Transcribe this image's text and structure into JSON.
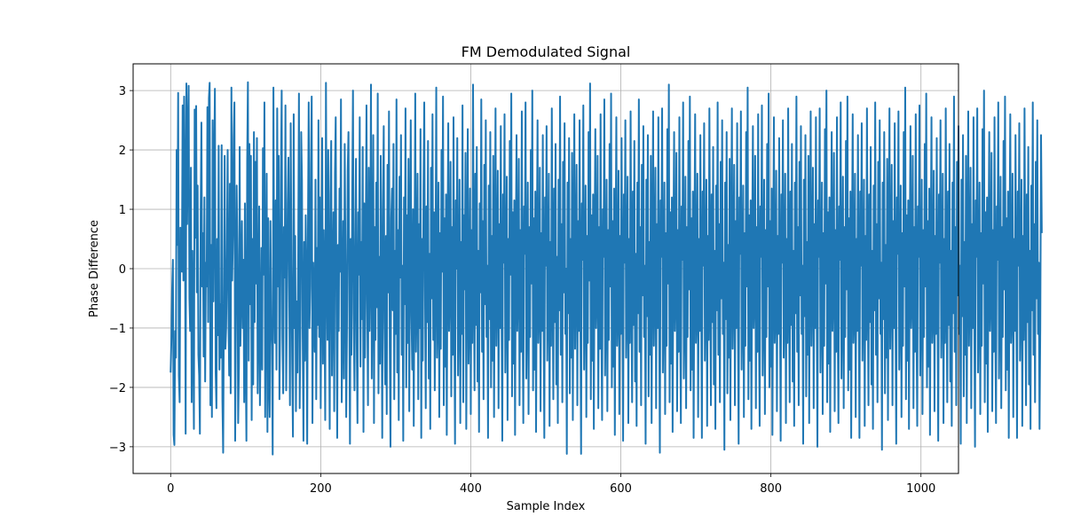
{
  "chart_data": {
    "type": "line",
    "title": "FM Demodulated Signal",
    "xlabel": "Sample Index",
    "ylabel": "Phase Difference",
    "xlim": [
      -50,
      1050
    ],
    "ylim": [
      -3.45,
      3.45
    ],
    "xticks": [
      0,
      200,
      400,
      600,
      800,
      1000
    ],
    "yticks": [
      -3,
      -2,
      -1,
      0,
      1,
      2,
      3
    ],
    "xtick_labels": [
      "0",
      "200",
      "400",
      "600",
      "800",
      "1000"
    ],
    "ytick_labels": [
      "−3",
      "−2",
      "−1",
      "0",
      "1",
      "2",
      "3"
    ],
    "grid": true,
    "legend": "none",
    "series": [
      {
        "color": "#1f77b4",
        "x_start": 0,
        "x_step": 1,
        "values": [
          -1.75,
          -1.2,
          -0.35,
          0.15,
          -2.8,
          -2.97,
          -1.05,
          -1.5,
          2.0,
          0.4,
          2.96,
          -1.8,
          -2.25,
          0.69,
          0.2,
          -0.05,
          2.75,
          -0.2,
          2.9,
          1.3,
          -2.78,
          3.12,
          0.75,
          2.29,
          3.08,
          -0.5,
          -1.05,
          1.7,
          -2.25,
          0.3,
          -1.1,
          -2.7,
          2.68,
          0.52,
          2.74,
          -0.4,
          1.4,
          -1.45,
          -1.8,
          -2.78,
          0.9,
          2.46,
          -0.3,
          0.6,
          -1.48,
          1.2,
          -1.9,
          0.1,
          -0.3,
          2.72,
          -0.9,
          2.87,
          3.13,
          -2.3,
          0.4,
          -2.5,
          2.5,
          -0.55,
          1.63,
          3.03,
          -1.75,
          -2.35,
          0.5,
          -1.12,
          2.07,
          -1.7,
          -0.6,
          -1.5,
          2.08,
          -2.22,
          -3.1,
          -0.55,
          1.9,
          -1.35,
          -0.98,
          0.25,
          2.0,
          -0.65,
          -1.8,
          1.43,
          -2.1,
          3.05,
          -0.2,
          0.54,
          2.2,
          2.8,
          -2.9,
          -0.7,
          1.4,
          0.2,
          -2.6,
          -1.65,
          2.05,
          -1.3,
          -0.35,
          0.8,
          -1.0,
          0.15,
          -2.25,
          1.1,
          -1.5,
          -2.9,
          1.8,
          3.14,
          -1.55,
          2.1,
          -0.6,
          1.9,
          -2.55,
          0.5,
          -1.95,
          2.3,
          -0.9,
          1.8,
          -0.25,
          2.2,
          -2.1,
          -0.8,
          1.05,
          -2.3,
          -1.1,
          0.35,
          -1.7,
          2.03,
          -0.1,
          2.8,
          -2.5,
          -0.4,
          1.6,
          -2.75,
          0.85,
          -1.85,
          -2.5,
          0.8,
          -0.85,
          -1.3,
          -3.13,
          3.05,
          -0.3,
          -1.25,
          1.15,
          -1.7,
          2.7,
          -0.3,
          1.9,
          -2.2,
          -0.85,
          1.55,
          3.0,
          -1.15,
          -2.1,
          0.7,
          -0.15,
          2.75,
          -2.05,
          -0.65,
          1.1,
          1.87,
          -0.25,
          -2.3,
          2.45,
          0.05,
          -1.6,
          -2.83,
          2.6,
          -1.0,
          0.55,
          -2.4,
          -0.55,
          -1.75,
          0.2,
          2.95,
          -2.35,
          -0.9,
          2.3,
          1.5,
          -1.15,
          -2.9,
          0.45,
          -1.55,
          0.9,
          -0.2,
          -2.95,
          0.6,
          2.8,
          -1.0,
          -0.3,
          1.75,
          2.9,
          -2.6,
          0.1,
          -0.75,
          -1.4,
          1.5,
          -2.2,
          0.35,
          -0.95,
          2.5,
          -1.15,
          1.2,
          -2.35,
          -0.25,
          2.2,
          -1.6,
          0.65,
          -0.55,
          -2.55,
          3.13,
          0.05,
          -1.2,
          2.0,
          -0.6,
          -2.7,
          1.25,
          2.15,
          -1.8,
          -0.35,
          0.95,
          -2.4,
          1.6,
          2.55,
          -0.7,
          -2.85,
          0.4,
          -1.05,
          1.35,
          -0.05,
          2.85,
          -2.25,
          -0.95,
          0.8,
          -1.85,
          2.1,
          0.15,
          -2.5,
          -1.0,
          1.65,
          2.3,
          -0.45,
          -2.95,
          0.5,
          -1.45,
          1.15,
          3.0,
          -0.75,
          -2.05,
          0.25,
          1.85,
          -1.25,
          -2.6,
          0.95,
          -0.1,
          2.55,
          -1.65,
          0.45,
          -0.85,
          2.05,
          -2.75,
          1.1,
          -1.5,
          0.35,
          2.75,
          -0.55,
          -2.3,
          1.7,
          -1.05,
          0.0,
          3.1,
          -1.85,
          -0.35,
          2.25,
          -2.6,
          0.7,
          -1.2,
          1.45,
          -0.65,
          2.95,
          -2.1,
          0.2,
          -1.6,
          1.9,
          -0.2,
          -2.85,
          1.0,
          2.4,
          -0.9,
          -1.95,
          0.55,
          -2.45,
          1.75,
          -0.4,
          2.65,
          -1.3,
          -3.0,
          0.85,
          1.35,
          -0.7,
          2.1,
          -2.2,
          0.3,
          -1.1,
          2.85,
          -1.75,
          0.65,
          -2.55,
          1.55,
          -0.15,
          2.25,
          -1.45,
          0.05,
          -2.9,
          1.2,
          -0.6,
          2.7,
          -2.0,
          0.9,
          -1.25,
          1.85,
          -2.4,
          0.4,
          2.5,
          -0.8,
          -1.7,
          1.0,
          -2.65,
          0.15,
          2.95,
          -1.4,
          -0.45,
          1.6,
          -2.2,
          0.75,
          -1.0,
          2.35,
          -2.85,
          0.5,
          -1.55,
          1.3,
          2.8,
          -0.3,
          -2.35,
          1.05,
          -0.9,
          2.15,
          -1.85,
          0.25,
          -2.7,
          1.7,
          -0.5,
          2.6,
          -1.2,
          0.95,
          -2.05,
          0.1,
          3.05,
          -1.5,
          -0.7,
          1.45,
          -2.5,
          0.6,
          -1.35,
          2.0,
          -0.05,
          2.9,
          -2.3,
          0.85,
          -1.65,
          1.25,
          -2.8,
          0.35,
          2.45,
          -1.05,
          -0.25,
          1.8,
          -2.15,
          0.7,
          -1.45,
          2.55,
          -0.75,
          -2.95,
          1.15,
          0.0,
          2.2,
          -1.8,
          -0.55,
          1.5,
          -2.6,
          0.45,
          -1.1,
          2.75,
          -2.25,
          0.9,
          -0.35,
          1.95,
          -2.7,
          0.2,
          2.35,
          -1.6,
          -0.8,
          1.35,
          -2.45,
          0.65,
          -1.25,
          3.1,
          -0.15,
          -2.05,
          1.6,
          -0.95,
          2.05,
          -1.9,
          0.3,
          -2.75,
          1.1,
          -0.4,
          2.85,
          -1.4,
          0.8,
          -2.2,
          1.75,
          -0.6,
          2.5,
          -1.15,
          0.05,
          -2.85,
          1.4,
          -0.85,
          2.3,
          -2.0,
          0.55,
          -1.55,
          1.9,
          -2.5,
          0.15,
          2.7,
          -1.3,
          -0.2,
          1.65,
          -2.35,
          0.75,
          -1.0,
          2.4,
          -0.7,
          -2.9,
          1.25,
          0.1,
          2.6,
          -1.75,
          -0.45,
          1.55,
          -2.55,
          0.5,
          -1.2,
          2.15,
          -0.1,
          2.95,
          -2.15,
          0.95,
          -1.6,
          1.15,
          -2.8,
          0.4,
          2.25,
          -1.05,
          -0.3,
          1.85,
          -2.3,
          0.65,
          -1.4,
          2.65,
          -0.8,
          -2.6,
          1.05,
          0.25,
          2.8,
          -1.85,
          -0.55,
          1.45,
          -2.45,
          0.7,
          -1.15,
          2.0,
          -0.25,
          3.0,
          -2.05,
          0.85,
          -1.7,
          1.3,
          -2.75,
          0.3,
          2.5,
          -1.25,
          -0.65,
          1.7,
          -2.4,
          0.6,
          -1.05,
          2.25,
          -0.5,
          -2.85,
          1.2,
          0.05,
          2.4,
          -1.55,
          -0.35,
          1.6,
          -2.65,
          0.45,
          -1.3,
          2.7,
          -0.15,
          -2.2,
          1.35,
          -0.9,
          2.1,
          -1.95,
          0.2,
          -2.6,
          1.5,
          -0.7,
          2.9,
          -1.45,
          0.75,
          -2.25,
          1.8,
          -0.4,
          2.45,
          -1.1,
          0.0,
          -3.12,
          1.45,
          -0.75,
          2.2,
          -2.1,
          0.5,
          -1.5,
          1.95,
          -2.55,
          0.35,
          2.6,
          -1.35,
          -0.1,
          1.75,
          -2.3,
          0.8,
          -1.05,
          2.5,
          -0.6,
          -3.12,
          1.1,
          0.15,
          2.75,
          -1.7,
          -0.5,
          1.4,
          -2.5,
          0.55,
          -1.25,
          2.3,
          -0.2,
          3.12,
          -2.2,
          0.9,
          -1.55,
          1.25,
          -2.7,
          0.45,
          2.35,
          -1.0,
          -0.35,
          1.9,
          -2.35,
          0.7,
          -1.35,
          2.6,
          -0.85,
          -2.55,
          1.0,
          0.2,
          2.85,
          -1.8,
          -0.6,
          1.5,
          -2.4,
          0.65,
          -1.2,
          2.1,
          -0.3,
          2.95,
          -2.0,
          0.8,
          -1.65,
          1.35,
          -2.8,
          0.25,
          2.55,
          -1.3,
          -0.7,
          1.65,
          -2.45,
          0.55,
          -1.1,
          2.2,
          -0.45,
          -2.9,
          1.25,
          0.1,
          2.5,
          -1.5,
          -0.4,
          1.55,
          -2.6,
          0.5,
          -1.25,
          2.65,
          -0.2,
          -2.25,
          1.3,
          -0.95,
          2.15,
          -1.9,
          0.25,
          -2.65,
          1.45,
          -0.75,
          2.85,
          -1.4,
          0.7,
          -2.3,
          1.75,
          -0.45,
          2.4,
          -1.15,
          0.05,
          -2.95,
          1.5,
          -0.8,
          2.25,
          -2.15,
          0.45,
          -1.45,
          1.9,
          -2.6,
          0.3,
          2.65,
          -1.3,
          -0.15,
          1.7,
          -2.35,
          0.75,
          -1.0,
          2.55,
          -0.65,
          -3.1,
          1.15,
          0.2,
          2.7,
          -1.75,
          -0.55,
          1.45,
          -2.45,
          0.6,
          -1.3,
          2.35,
          -0.25,
          3.1,
          -2.25,
          0.95,
          -1.6,
          1.2,
          -2.75,
          0.4,
          2.3,
          -1.05,
          -0.3,
          1.95,
          -2.4,
          0.65,
          -1.4,
          2.55,
          -0.8,
          -2.6,
          1.05,
          0.15,
          2.8,
          -1.85,
          -0.65,
          1.55,
          -2.35,
          0.7,
          -1.15,
          2.15,
          -0.35,
          2.9,
          -2.05,
          0.85,
          -1.7,
          1.3,
          -2.85,
          0.3,
          2.6,
          -1.25,
          -0.75,
          1.6,
          -2.5,
          0.5,
          -1.05,
          2.25,
          -0.4,
          -2.85,
          1.3,
          0.05,
          2.45,
          -1.55,
          -0.45,
          1.5,
          -2.65,
          0.55,
          -1.2,
          2.7,
          -0.15,
          -2.3,
          1.25,
          -0.9,
          2.05,
          -1.95,
          0.3,
          -2.7,
          1.4,
          -0.7,
          2.8,
          -1.45,
          0.75,
          -2.25,
          1.8,
          -0.5,
          2.5,
          -1.1,
          0.1,
          -3.05,
          1.45,
          -0.85,
          2.3,
          -2.1,
          0.4,
          -1.5,
          1.85,
          -2.55,
          0.35,
          2.7,
          -1.35,
          -0.2,
          1.75,
          -2.3,
          0.8,
          -1.0,
          2.45,
          -0.7,
          -2.95,
          1.2,
          0.25,
          2.65,
          -1.7,
          -0.6,
          1.4,
          -2.5,
          0.6,
          -1.3,
          2.3,
          -0.3,
          3.05,
          -2.2,
          0.9,
          -1.55,
          1.15,
          -2.7,
          0.45,
          2.4,
          -1.0,
          -0.4,
          1.9,
          -2.35,
          0.7,
          -1.4,
          2.6,
          -0.85,
          -2.65,
          1.05,
          0.2,
          2.75,
          -1.8,
          -0.55,
          1.5,
          -2.45,
          0.65,
          -1.15,
          2.1,
          -0.3,
          2.95,
          -2.0,
          0.8,
          -1.65,
          1.35,
          -2.8,
          0.3,
          2.55,
          -1.25,
          -0.7,
          1.65,
          -2.4,
          0.55,
          -1.1,
          2.2,
          -0.5,
          -2.9,
          1.25,
          0.1,
          2.5,
          -1.5,
          -0.4,
          1.6,
          -2.6,
          0.5,
          -1.25,
          2.7,
          -0.2,
          -2.25,
          1.3,
          -0.95,
          2.1,
          -1.9,
          0.3,
          -2.65,
          1.45,
          -0.75,
          2.9,
          -1.4,
          0.7,
          -2.3,
          1.8,
          -0.45,
          2.4,
          -1.1,
          0.05,
          -2.95,
          1.5,
          -0.8,
          2.25,
          -2.15,
          0.45,
          -1.45,
          1.9,
          -2.6,
          0.35,
          2.65,
          -1.3,
          -0.15,
          1.7,
          -2.35,
          0.75,
          -1.0,
          2.55,
          -0.65,
          -3.0,
          1.15,
          0.2,
          2.7,
          -1.75,
          -0.55,
          1.45,
          -2.45,
          0.6,
          -1.3,
          2.35,
          -0.25,
          3.0,
          -2.25,
          0.95,
          -1.6,
          1.2,
          -2.75,
          0.4,
          2.3,
          -1.05,
          -0.3,
          1.95,
          -2.4,
          0.65,
          -1.4,
          2.55,
          -0.8,
          -2.6,
          1.05,
          0.15,
          2.8,
          -1.85,
          -0.65,
          1.55,
          -2.35,
          0.7,
          -1.15,
          2.15,
          -0.35,
          2.9,
          -2.05,
          0.85,
          -1.7,
          1.3,
          -2.85,
          0.3,
          2.6,
          -1.25,
          -0.75,
          1.6,
          -2.5,
          0.5,
          -1.05,
          2.25,
          -0.4,
          -2.85,
          1.3,
          0.05,
          2.45,
          -1.55,
          -0.45,
          1.5,
          -2.65,
          0.55,
          -1.2,
          2.7,
          -0.15,
          -2.3,
          1.25,
          -0.9,
          2.05,
          -1.95,
          0.3,
          -2.7,
          1.4,
          -0.7,
          2.8,
          -1.45,
          0.75,
          -2.25,
          1.8,
          -0.5,
          2.5,
          -1.1,
          0.1,
          -3.05,
          1.45,
          -0.85,
          2.3,
          -2.1,
          0.4,
          -1.5,
          1.85,
          -2.55,
          0.35,
          2.7,
          -1.35,
          -0.2,
          1.75,
          -2.3,
          0.8,
          -1.0,
          2.45,
          -0.7,
          -2.95,
          1.2,
          0.25,
          2.65,
          -1.7,
          -0.6,
          1.4,
          -2.5,
          0.6,
          -1.3,
          2.3,
          -0.3,
          3.05,
          -2.2,
          0.9,
          -1.55,
          1.15,
          -2.7,
          0.45,
          2.4,
          -1.0,
          -0.4,
          1.9,
          -2.35,
          0.7,
          -1.4,
          2.6,
          -0.85,
          -2.65,
          1.05,
          0.2,
          2.75,
          -1.8,
          -0.55,
          1.5,
          -2.45,
          0.65,
          -1.15,
          2.1,
          -0.3,
          2.95,
          -2.0,
          0.8,
          -1.65,
          1.35,
          -2.8,
          0.3,
          2.55,
          -1.25,
          -0.7,
          1.65,
          -2.4,
          0.55,
          -1.1,
          2.2,
          -0.5,
          -2.9,
          1.25,
          0.1,
          2.5,
          -1.5,
          -0.4,
          1.6,
          -2.6,
          0.5,
          -1.25,
          2.7,
          -0.2,
          -2.25,
          1.3,
          -0.95,
          2.1,
          -1.9,
          0.3,
          -2.65,
          1.45,
          -0.75,
          2.9,
          -1.4,
          0.7,
          -2.3,
          1.8,
          -0.45,
          2.4,
          -1.1,
          0.05,
          -2.95,
          1.5,
          -0.8,
          2.25,
          -2.15,
          0.45,
          -1.45,
          1.9,
          -2.6,
          0.35,
          2.65,
          -1.3,
          -0.15,
          1.7,
          -2.35,
          0.75,
          -1.0,
          2.55,
          -0.65,
          -3.0,
          1.15,
          0.2,
          2.7,
          -1.75,
          -0.55,
          1.45,
          -2.45,
          0.6,
          -1.3,
          2.35,
          -0.25,
          3.0,
          -2.25,
          0.95,
          -1.6,
          1.2,
          -2.75,
          0.4,
          2.3,
          -1.05,
          -0.3,
          1.95,
          -2.4,
          0.65,
          -1.4,
          2.55,
          -0.8,
          -2.6,
          1.05,
          0.15,
          2.8,
          -1.85,
          -0.65,
          1.55,
          -2.35,
          0.7,
          -1.15,
          2.15,
          -0.35,
          2.9,
          -2.05,
          0.85,
          -1.7,
          1.3,
          -2.85,
          0.3,
          2.6,
          -1.25,
          -0.75,
          1.6,
          -2.5,
          0.5,
          -1.05,
          2.25,
          -0.4,
          -2.85,
          1.3,
          0.05,
          2.45,
          -1.55,
          -0.45,
          1.5,
          -2.65,
          0.55,
          -1.2,
          2.7,
          -0.15,
          -2.3,
          1.25,
          -0.9,
          2.05,
          -1.95,
          0.3,
          -2.7,
          1.4,
          -0.7,
          2.8,
          -1.45,
          0.75,
          -2.25,
          1.8,
          -0.5,
          2.5,
          -1.1,
          0.1,
          -2.7,
          -1.0,
          2.25,
          0.6
        ]
      }
    ]
  }
}
